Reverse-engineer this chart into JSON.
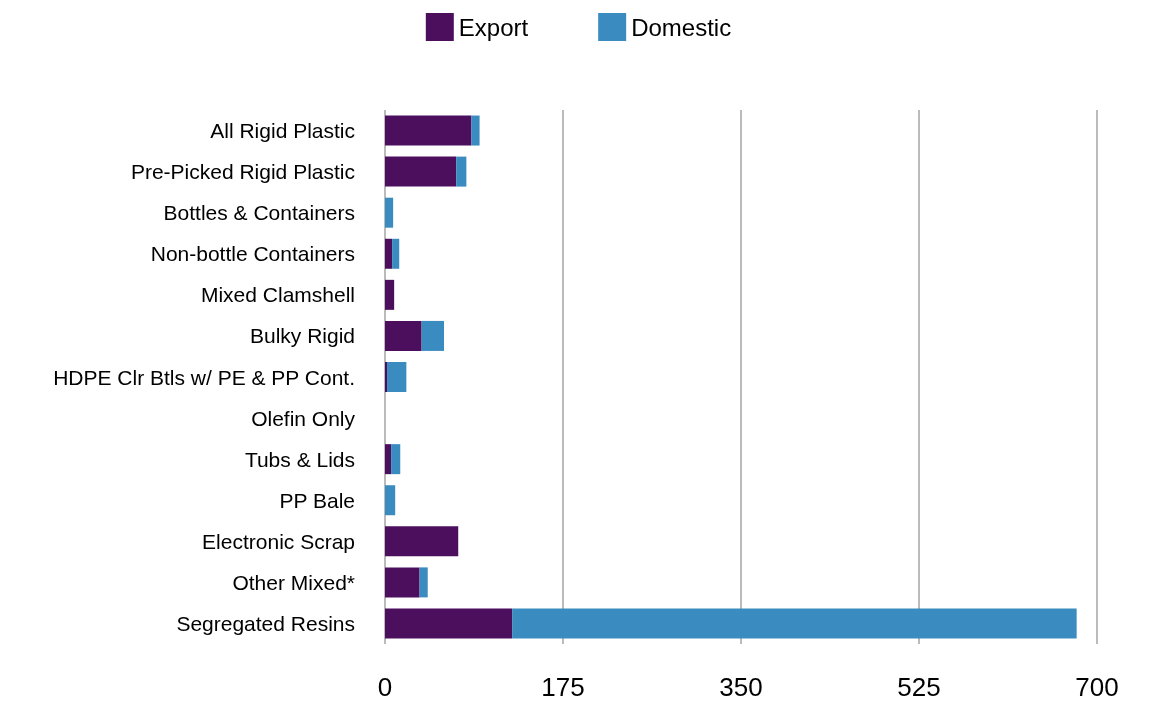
{
  "chart_data": {
    "type": "bar",
    "orientation": "horizontal",
    "stacked": true,
    "categories": [
      "All Rigid Plastic",
      "Pre-Picked Rigid Plastic",
      "Bottles & Containers",
      "Non-bottle Containers",
      "Mixed Clamshell",
      "Bulky Rigid",
      "HDPE Clr Btls w/ PE & PP Cont.",
      "Olefin Only",
      "Tubs & Lids",
      "PP Bale",
      "Electronic Scrap",
      "Other Mixed*",
      "Segregated Resins"
    ],
    "series": [
      {
        "name": "Export",
        "color": "#4b0f5e",
        "values": [
          85,
          70,
          0,
          7,
          9,
          36,
          2,
          0,
          6,
          0,
          72,
          34,
          125
        ]
      },
      {
        "name": "Domestic",
        "color": "#3a8bbf",
        "values": [
          8,
          10,
          8,
          7,
          0,
          22,
          19,
          0,
          9,
          10,
          0,
          8,
          555
        ]
      }
    ],
    "xlim": [
      0,
      700
    ],
    "xticks": [
      0,
      175,
      350,
      525,
      700
    ],
    "grid": "x",
    "legend": "top"
  }
}
